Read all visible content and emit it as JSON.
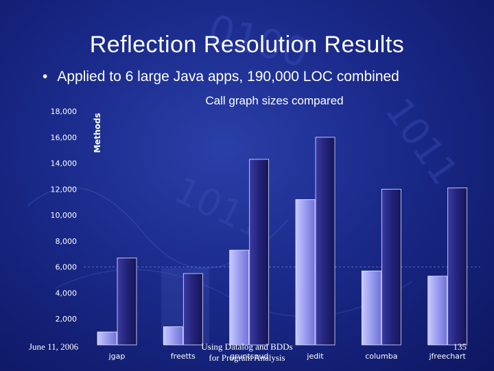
{
  "slide": {
    "title": "Reflection Resolution Results",
    "bullet": "Applied to 6 large Java apps, 190,000 LOC combined"
  },
  "footer": {
    "date": "June 11, 2006",
    "center_line1": "Using Datalog and BDDs",
    "center_line2": "for Program Analysis",
    "page": "135"
  },
  "colors": {
    "series_light": "#9a9cf0",
    "series_dark": "#23237a",
    "text": "#ffffff"
  },
  "chart_data": {
    "type": "bar",
    "title": "Call graph sizes compared",
    "ylabel": "Methods",
    "xlabel": "",
    "ylim": [
      0,
      18000
    ],
    "ytick_step": 2000,
    "categories": [
      "jgap",
      "freetts",
      "gruntspud",
      "jedit",
      "columba",
      "jfreechart"
    ],
    "series": [
      {
        "values": [
          1000,
          1400,
          7300,
          11200,
          5700,
          5300
        ]
      },
      {
        "values": [
          6700,
          5500,
          14300,
          16000,
          12000,
          12100
        ]
      }
    ],
    "grid": false,
    "legend": "none"
  }
}
